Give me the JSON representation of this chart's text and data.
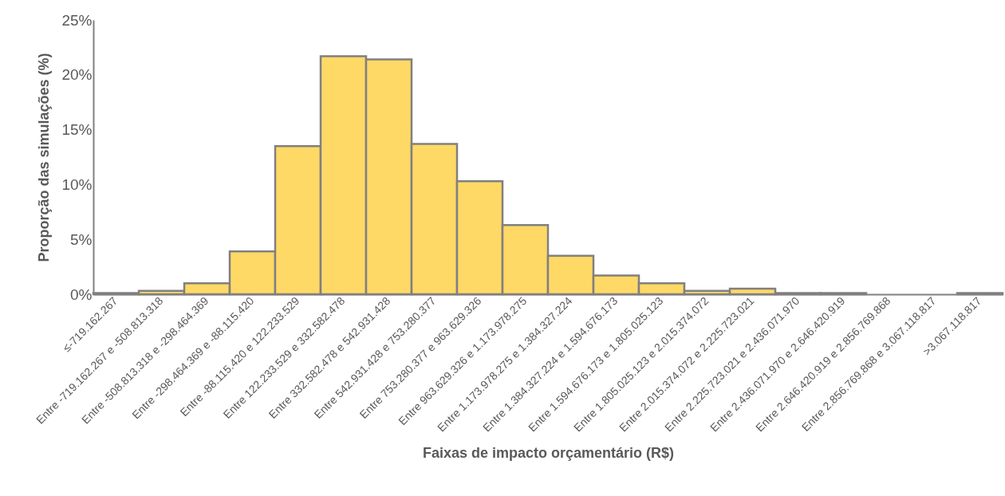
{
  "chart_data": {
    "type": "bar",
    "xlabel": "Faixas de impacto orçamentário (R$)",
    "ylabel": "Proporção das simulações (%)",
    "categories": [
      "≤-719.162.267",
      "Entre -719.162.267 e -508.813.318",
      "Entre -508.813.318 e -298.464.369",
      "Entre -298.464.369 e -88.115.420",
      "Entre -88.115.420 e 122.233.529",
      "Entre 122.233.529 e 332.582.478",
      "Entre 332.582.478 e 542.931.428",
      "Entre 542.931.428 e 753.280.377",
      "Entre 753.280.377 e 963.629.326",
      "Entre 963.629.326 e 1.173.978.275",
      "Entre 1.173.978.275 e 1.384.327.224",
      "Entre 1.384.327.224 e 1.594.676.173",
      "Entre 1.594.676.173 e 1.805.025.123",
      "Entre 1.805.025.123 e 2.015.374.072",
      "Entre 2.015.374.072 e 2.225.723.021",
      "Entre 2.225.723.021 e 2.436.071.970",
      "Entre 2.436.071.970 e 2.646.420.919",
      "Entre 2.646.420.919 e 2.856.769.868",
      "Entre 2.856.769.868 e 3.067.118.817",
      ">3.067.118.817"
    ],
    "values": [
      0.1,
      0.3,
      1.0,
      3.9,
      13.5,
      21.7,
      21.4,
      13.7,
      10.3,
      6.3,
      3.5,
      1.7,
      1.0,
      0.3,
      0.5,
      0.1,
      0.1,
      0.0,
      0.0,
      0.1
    ],
    "color": "#ffd966",
    "ylim": [
      0,
      25
    ],
    "yticks": [
      {
        "value": 0,
        "label": "0%"
      },
      {
        "value": 5,
        "label": "5%"
      },
      {
        "value": 10,
        "label": "10%"
      },
      {
        "value": 15,
        "label": "15%"
      },
      {
        "value": 20,
        "label": "20%"
      },
      {
        "value": 25,
        "label": "25%"
      }
    ],
    "grid": false
  }
}
